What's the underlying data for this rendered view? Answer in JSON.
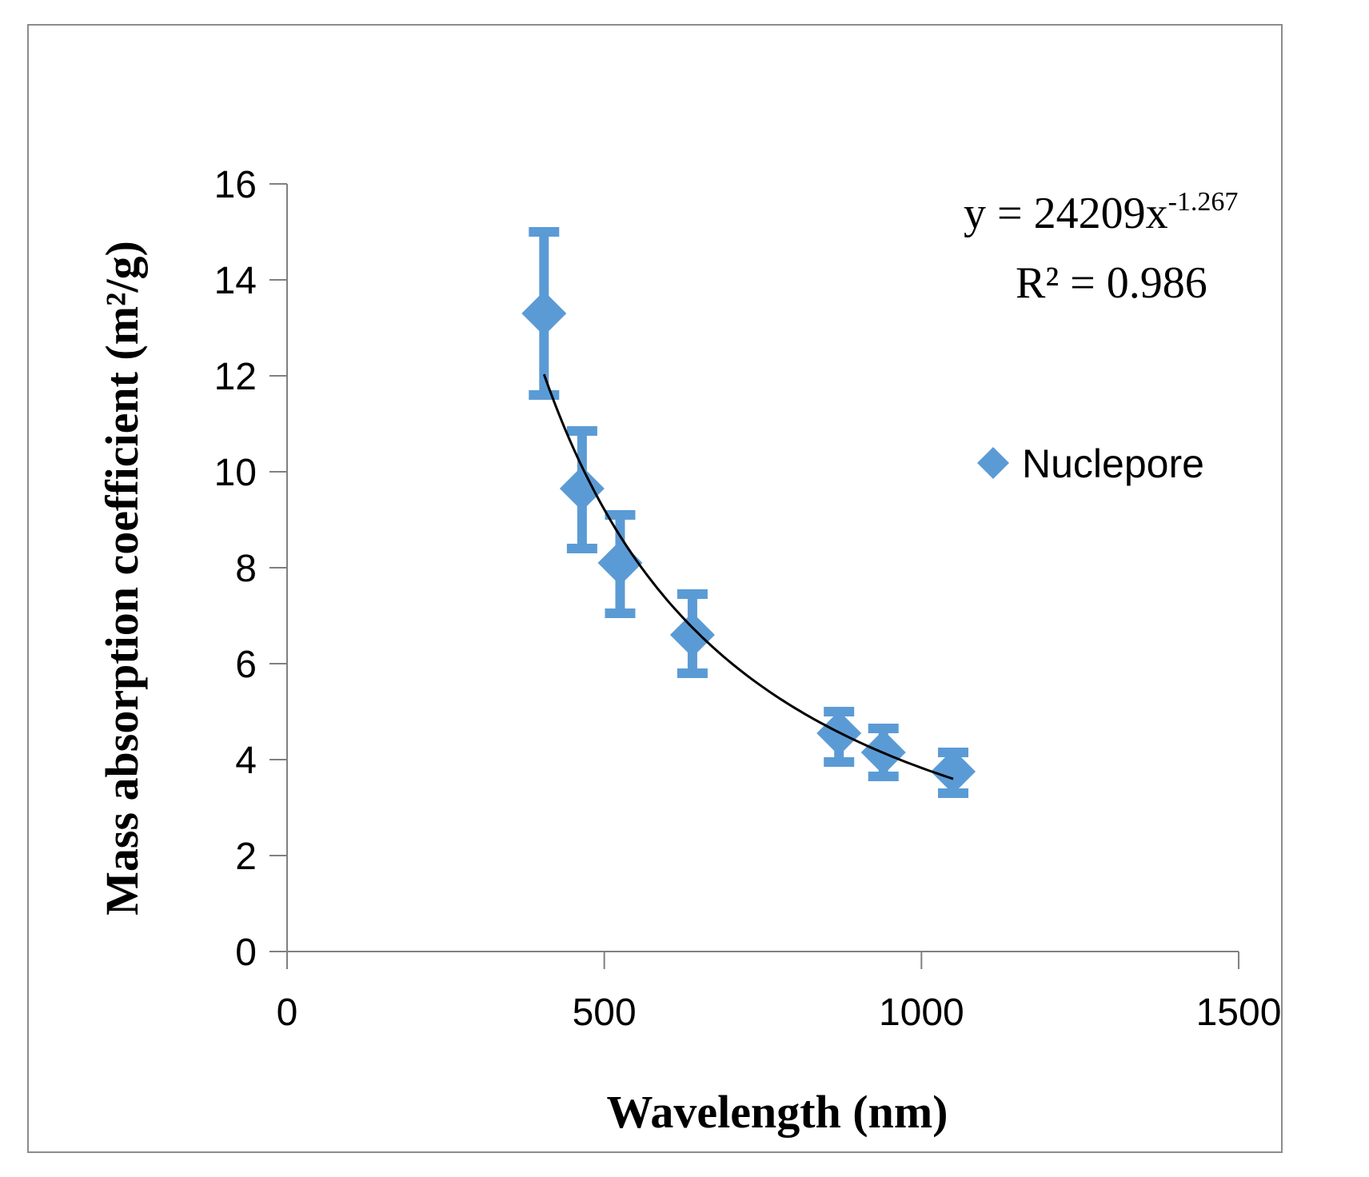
{
  "chart_data": {
    "type": "scatter",
    "xlabel": "Wavelength (nm)",
    "ylabel": "Mass absorption coefficient (m²/g)",
    "xlim": [
      0,
      1500
    ],
    "ylim": [
      0,
      16
    ],
    "xticks": [
      0,
      500,
      1000,
      1500
    ],
    "yticks": [
      0,
      2,
      4,
      6,
      8,
      10,
      12,
      14,
      16
    ],
    "grid": false,
    "legend_position": "right",
    "series": [
      {
        "name": "Nuclepore",
        "color": "#5b9bd5",
        "marker": "diamond",
        "points": [
          {
            "x": 405,
            "y": 13.3,
            "y_low": 11.6,
            "y_high": 15.0
          },
          {
            "x": 465,
            "y": 9.65,
            "y_low": 8.4,
            "y_high": 10.85
          },
          {
            "x": 525,
            "y": 8.1,
            "y_low": 7.05,
            "y_high": 9.1
          },
          {
            "x": 639,
            "y": 6.6,
            "y_low": 5.8,
            "y_high": 7.45
          },
          {
            "x": 870,
            "y": 4.55,
            "y_low": 3.95,
            "y_high": 5.0
          },
          {
            "x": 940,
            "y": 4.15,
            "y_low": 3.65,
            "y_high": 4.65
          },
          {
            "x": 1050,
            "y": 3.75,
            "y_low": 3.3,
            "y_high": 4.15
          }
        ]
      }
    ],
    "trendline": {
      "type": "power",
      "coefficient": 24209,
      "exponent": -1.267,
      "x_range": [
        405,
        1050
      ],
      "color": "#000000",
      "equation_prefix": "y = 24209x",
      "equation_exponent": "-1.267",
      "r_squared_label": "R² = 0.986"
    }
  }
}
